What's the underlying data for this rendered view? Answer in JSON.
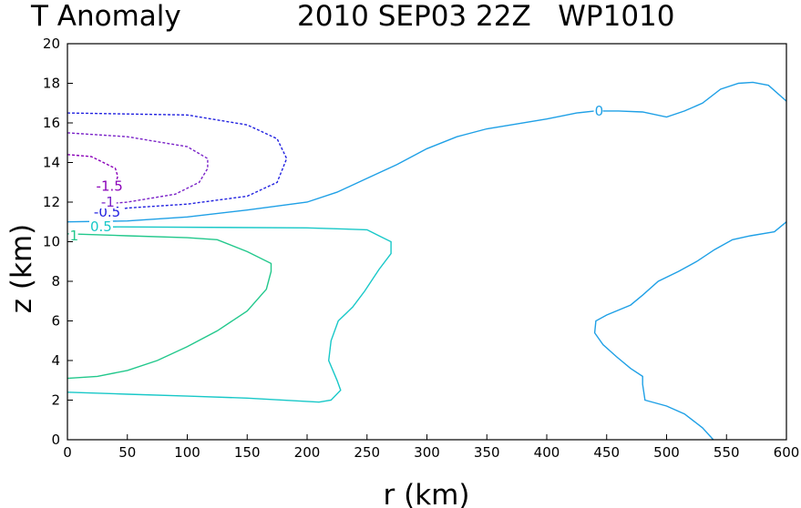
{
  "chart_data": {
    "type": "contour",
    "title_left": "T Anomaly",
    "title_right": "2010 SEP03 22Z   WP1010",
    "xlabel": "r (km)",
    "ylabel": "z (km)",
    "xlim": [
      0,
      600
    ],
    "ylim": [
      0,
      20
    ],
    "xticks": [
      "0",
      "50",
      "100",
      "150",
      "200",
      "250",
      "300",
      "350",
      "400",
      "450",
      "500",
      "550",
      "600"
    ],
    "yticks": [
      "0",
      "2",
      "4",
      "6",
      "8",
      "10",
      "12",
      "14",
      "16",
      "18",
      "20"
    ],
    "contours": [
      {
        "level": "0",
        "color": "#1fa0e6",
        "dashed": false,
        "paths": [
          [
            [
              0,
              11.0
            ],
            [
              50,
              11.05
            ],
            [
              100,
              11.25
            ],
            [
              150,
              11.6
            ],
            [
              200,
              12.0
            ],
            [
              225,
              12.5
            ],
            [
              250,
              13.2
            ],
            [
              275,
              13.9
            ],
            [
              300,
              14.7
            ],
            [
              325,
              15.3
            ],
            [
              350,
              15.7
            ],
            [
              400,
              16.2
            ],
            [
              425,
              16.5
            ],
            [
              440,
              16.6
            ],
            [
              460,
              16.6
            ],
            [
              480,
              16.55
            ],
            [
              500,
              16.3
            ],
            [
              515,
              16.6
            ],
            [
              530,
              17.0
            ],
            [
              545,
              17.7
            ],
            [
              560,
              18.0
            ],
            [
              572,
              18.05
            ],
            [
              585,
              17.9
            ],
            [
              600,
              17.1
            ]
          ],
          [
            [
              539,
              0.0
            ],
            [
              530,
              0.6
            ],
            [
              515,
              1.3
            ],
            [
              500,
              1.7
            ],
            [
              482,
              2.0
            ],
            [
              480,
              2.8
            ],
            [
              480,
              3.2
            ],
            [
              470,
              3.6
            ],
            [
              458,
              4.2
            ],
            [
              447,
              4.8
            ],
            [
              440,
              5.4
            ],
            [
              441,
              6.0
            ],
            [
              450,
              6.3
            ],
            [
              470,
              6.8
            ],
            [
              480,
              7.3
            ],
            [
              493,
              8.0
            ],
            [
              510,
              8.5
            ],
            [
              525,
              9.0
            ],
            [
              540,
              9.6
            ],
            [
              555,
              10.1
            ],
            [
              570,
              10.3
            ],
            [
              590,
              10.5
            ],
            [
              600,
              11.0
            ]
          ]
        ],
        "labels": [
          {
            "text": "0",
            "x": 440,
            "z": 16.6
          }
        ]
      },
      {
        "level": "-0.5",
        "color": "#2222e0",
        "dashed": true,
        "paths": [
          [
            [
              0,
              16.5
            ],
            [
              100,
              16.4
            ],
            [
              150,
              15.9
            ],
            [
              175,
              15.2
            ],
            [
              183,
              14.2
            ],
            [
              175,
              13.0
            ],
            [
              150,
              12.3
            ],
            [
              100,
              11.9
            ],
            [
              50,
              11.7
            ],
            [
              30,
              11.5
            ]
          ]
        ],
        "labels": [
          {
            "text": "-0.5",
            "x": 22,
            "z": 11.5
          }
        ]
      },
      {
        "level": "-1",
        "color": "#7a22c8",
        "dashed": true,
        "paths": [
          [
            [
              0,
              15.5
            ],
            [
              50,
              15.3
            ],
            [
              100,
              14.8
            ],
            [
              117,
              14.2
            ],
            [
              117,
              13.7
            ],
            [
              110,
              13.0
            ],
            [
              90,
              12.4
            ],
            [
              50,
              12.0
            ],
            [
              40,
              11.95
            ]
          ]
        ],
        "labels": [
          {
            "text": "-1",
            "x": 28,
            "z": 12.0
          }
        ]
      },
      {
        "level": "-1.5",
        "color": "#8a00b8",
        "dashed": true,
        "paths": [
          [
            [
              0,
              14.4
            ],
            [
              20,
              14.3
            ],
            [
              40,
              13.7
            ],
            [
              42,
              13.3
            ],
            [
              40,
              12.9
            ],
            [
              35,
              12.7
            ]
          ]
        ],
        "labels": [
          {
            "text": "-1.5",
            "x": 24,
            "z": 12.8
          }
        ]
      },
      {
        "level": "0.5",
        "color": "#18c8c8",
        "dashed": false,
        "paths": [
          [
            [
              35,
              10.75
            ],
            [
              200,
              10.7
            ],
            [
              250,
              10.6
            ],
            [
              260,
              10.3
            ],
            [
              270,
              10.0
            ],
            [
              270,
              9.4
            ],
            [
              260,
              8.6
            ],
            [
              248,
              7.5
            ],
            [
              238,
              6.7
            ],
            [
              226,
              6.0
            ],
            [
              220,
              5.0
            ],
            [
              218,
              4.0
            ],
            [
              225,
              3.0
            ],
            [
              228,
              2.5
            ],
            [
              220,
              2.0
            ],
            [
              210,
              1.9
            ],
            [
              150,
              2.1
            ],
            [
              100,
              2.2
            ],
            [
              50,
              2.3
            ],
            [
              0,
              2.4
            ]
          ]
        ],
        "labels": [
          {
            "text": "0.5",
            "x": 19,
            "z": 10.75
          }
        ]
      },
      {
        "level": "1",
        "color": "#22c88c",
        "dashed": false,
        "paths": [
          [
            [
              0,
              10.4
            ],
            [
              50,
              10.3
            ],
            [
              100,
              10.2
            ],
            [
              125,
              10.1
            ],
            [
              150,
              9.5
            ],
            [
              170,
              8.9
            ],
            [
              170,
              8.5
            ],
            [
              166,
              7.6
            ],
            [
              150,
              6.5
            ],
            [
              125,
              5.5
            ],
            [
              100,
              4.7
            ],
            [
              75,
              4.0
            ],
            [
              50,
              3.5
            ],
            [
              25,
              3.2
            ],
            [
              0,
              3.1
            ]
          ]
        ],
        "labels": [
          {
            "text": "1",
            "x": 2,
            "z": 10.3
          }
        ]
      }
    ]
  }
}
